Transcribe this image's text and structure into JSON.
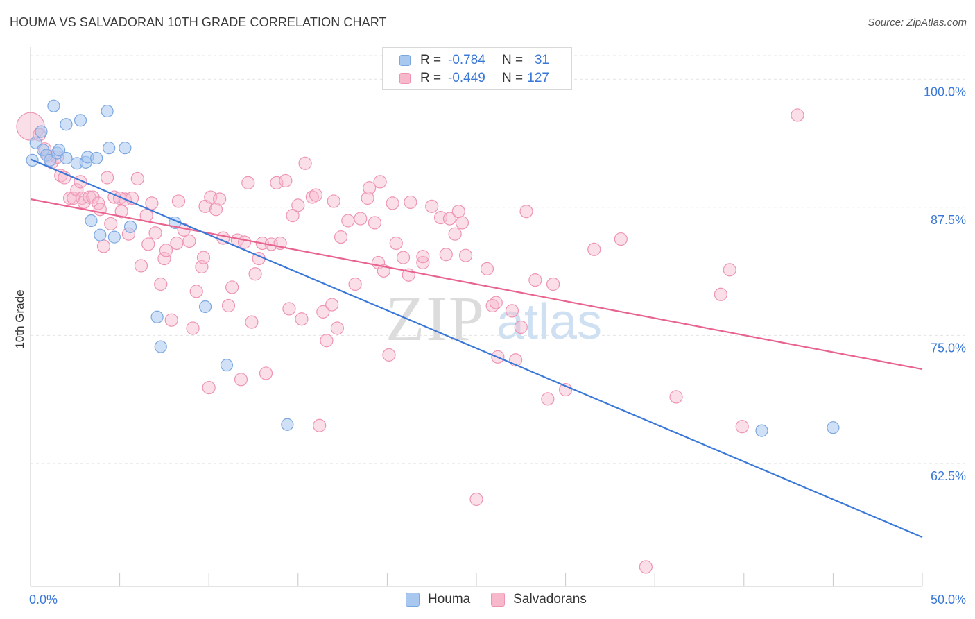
{
  "title": "HOUMA VS SALVADORAN 10TH GRADE CORRELATION CHART",
  "source": "Source: ZipAtlas.com",
  "watermark": {
    "zip": "ZIP",
    "atlas": "atlas"
  },
  "colors": {
    "houma_fill": "#a9c8f0",
    "houma_stroke": "#7ba7e0",
    "houma_line": "#3a78d8",
    "salv_fill": "#f7b8cc",
    "salv_stroke": "#ee94b2",
    "salv_line": "#e8648f",
    "tick_text": "#3a78d8",
    "grid": "#e4e4e4"
  },
  "legend_top": {
    "rows": [
      {
        "series": "Houma",
        "r_label": "R =",
        "r_value": "-0.784",
        "n_label": "N =",
        "n_value": "31"
      },
      {
        "series": "Salvadorans",
        "r_label": "R =",
        "r_value": "-0.449",
        "n_label": "N =",
        "n_value": "127"
      }
    ]
  },
  "chart_data": {
    "type": "scatter",
    "title": "HOUMA VS SALVADORAN 10TH GRADE CORRELATION CHART",
    "ylabel": "10th Grade",
    "xlabel": "",
    "xlim": [
      0,
      50
    ],
    "ylim": [
      50.5,
      103
    ],
    "y_ticks": [
      {
        "value": 100,
        "label": "100.0%"
      },
      {
        "value": 87.5,
        "label": "87.5%"
      },
      {
        "value": 75,
        "label": "75.0%"
      },
      {
        "value": 62.5,
        "label": "62.5%"
      }
    ],
    "x_tick_labels": [
      {
        "value": 0,
        "label": "0.0%"
      },
      {
        "value": 50,
        "label": "50.0%"
      }
    ],
    "x_minor_ticks": [
      0,
      5,
      10,
      15,
      20,
      25,
      30,
      35,
      40,
      45,
      50
    ],
    "grid": true,
    "legend_position": "bottom",
    "series": [
      {
        "name": "Houma",
        "r": -0.784,
        "n": 31,
        "trend": {
          "x": [
            0,
            50
          ],
          "y": [
            92.2,
            55.3
          ]
        },
        "points": [
          [
            0.1,
            92.1
          ],
          [
            0.3,
            93.8
          ],
          [
            0.6,
            94.9
          ],
          [
            0.7,
            93.1
          ],
          [
            0.9,
            92.6
          ],
          [
            1.1,
            92.1
          ],
          [
            1.3,
            97.4
          ],
          [
            1.5,
            92.8
          ],
          [
            1.6,
            93.1
          ],
          [
            2.0,
            92.3
          ],
          [
            2.0,
            95.6
          ],
          [
            2.6,
            91.8
          ],
          [
            2.8,
            96.0
          ],
          [
            3.1,
            91.9
          ],
          [
            3.2,
            92.4
          ],
          [
            3.4,
            86.2
          ],
          [
            3.7,
            92.3
          ],
          [
            3.9,
            84.8
          ],
          [
            4.3,
            96.9
          ],
          [
            4.4,
            93.3
          ],
          [
            4.7,
            84.6
          ],
          [
            5.3,
            93.3
          ],
          [
            5.6,
            85.6
          ],
          [
            7.1,
            76.8
          ],
          [
            7.3,
            73.9
          ],
          [
            8.1,
            86.0
          ],
          [
            9.8,
            77.8
          ],
          [
            11.0,
            72.1
          ],
          [
            14.4,
            66.3
          ],
          [
            41.0,
            65.7
          ],
          [
            45.0,
            66.0
          ]
        ]
      },
      {
        "name": "Salvadorans",
        "r": -0.449,
        "n": 127,
        "trend": {
          "x": [
            0,
            50
          ],
          "y": [
            88.3,
            71.7
          ]
        },
        "points": [
          [
            0.0,
            95.4
          ],
          [
            0.5,
            94.6
          ],
          [
            0.8,
            93.2
          ],
          [
            1.0,
            92.5
          ],
          [
            1.2,
            91.9
          ],
          [
            1.5,
            92.4
          ],
          [
            1.7,
            90.6
          ],
          [
            1.9,
            90.4
          ],
          [
            2.2,
            88.4
          ],
          [
            2.4,
            88.4
          ],
          [
            2.6,
            89.2
          ],
          [
            2.8,
            90.0
          ],
          [
            2.9,
            88.4
          ],
          [
            3.0,
            88.0
          ],
          [
            3.3,
            88.5
          ],
          [
            3.5,
            88.5
          ],
          [
            3.8,
            87.9
          ],
          [
            3.9,
            87.3
          ],
          [
            4.1,
            83.7
          ],
          [
            4.3,
            90.4
          ],
          [
            4.5,
            85.9
          ],
          [
            4.7,
            88.5
          ],
          [
            5.0,
            88.4
          ],
          [
            5.1,
            87.1
          ],
          [
            5.3,
            88.3
          ],
          [
            5.5,
            84.9
          ],
          [
            5.7,
            88.4
          ],
          [
            6.0,
            90.3
          ],
          [
            6.2,
            81.8
          ],
          [
            6.5,
            86.7
          ],
          [
            6.6,
            83.9
          ],
          [
            6.8,
            87.9
          ],
          [
            7.0,
            85.0
          ],
          [
            7.3,
            80.0
          ],
          [
            7.5,
            82.5
          ],
          [
            7.6,
            83.3
          ],
          [
            7.9,
            76.5
          ],
          [
            8.2,
            84.0
          ],
          [
            8.3,
            88.1
          ],
          [
            8.6,
            85.3
          ],
          [
            8.9,
            84.2
          ],
          [
            9.1,
            75.7
          ],
          [
            9.3,
            79.3
          ],
          [
            9.6,
            81.7
          ],
          [
            9.7,
            82.6
          ],
          [
            9.8,
            87.6
          ],
          [
            10.0,
            69.9
          ],
          [
            10.1,
            88.5
          ],
          [
            10.4,
            87.3
          ],
          [
            10.6,
            88.3
          ],
          [
            10.8,
            84.5
          ],
          [
            11.1,
            77.9
          ],
          [
            11.3,
            79.7
          ],
          [
            11.6,
            84.3
          ],
          [
            11.8,
            70.7
          ],
          [
            12.0,
            84.1
          ],
          [
            12.2,
            89.9
          ],
          [
            12.4,
            76.3
          ],
          [
            12.6,
            81.0
          ],
          [
            12.8,
            82.5
          ],
          [
            13.0,
            84.0
          ],
          [
            13.2,
            71.3
          ],
          [
            13.5,
            83.9
          ],
          [
            13.8,
            89.9
          ],
          [
            14.0,
            84.0
          ],
          [
            14.3,
            90.1
          ],
          [
            14.5,
            77.6
          ],
          [
            14.7,
            86.7
          ],
          [
            15.0,
            87.7
          ],
          [
            15.2,
            76.6
          ],
          [
            15.4,
            91.8
          ],
          [
            15.8,
            88.5
          ],
          [
            16.0,
            88.7
          ],
          [
            16.2,
            66.2
          ],
          [
            16.4,
            77.3
          ],
          [
            16.6,
            74.5
          ],
          [
            16.9,
            78.0
          ],
          [
            17.0,
            88.1
          ],
          [
            17.2,
            75.7
          ],
          [
            17.4,
            84.6
          ],
          [
            17.8,
            86.2
          ],
          [
            18.2,
            80.0
          ],
          [
            18.5,
            86.4
          ],
          [
            18.9,
            88.4
          ],
          [
            19.0,
            89.4
          ],
          [
            19.3,
            86.0
          ],
          [
            19.5,
            82.1
          ],
          [
            19.6,
            90.0
          ],
          [
            19.8,
            81.3
          ],
          [
            20.1,
            73.1
          ],
          [
            20.3,
            87.9
          ],
          [
            20.5,
            84.0
          ],
          [
            20.9,
            82.6
          ],
          [
            21.2,
            80.9
          ],
          [
            21.3,
            88.0
          ],
          [
            22.0,
            82.1
          ],
          [
            22.0,
            82.7
          ],
          [
            22.5,
            87.6
          ],
          [
            23.0,
            86.5
          ],
          [
            23.3,
            82.9
          ],
          [
            23.5,
            86.4
          ],
          [
            23.8,
            84.9
          ],
          [
            24.0,
            87.1
          ],
          [
            24.2,
            86.0
          ],
          [
            24.4,
            82.8
          ],
          [
            25.0,
            59.0
          ],
          [
            25.6,
            81.5
          ],
          [
            25.9,
            77.9
          ],
          [
            26.1,
            78.2
          ],
          [
            26.2,
            72.9
          ],
          [
            27.0,
            77.4
          ],
          [
            27.2,
            72.6
          ],
          [
            27.5,
            75.8
          ],
          [
            27.8,
            87.1
          ],
          [
            28.3,
            80.4
          ],
          [
            29.0,
            68.8
          ],
          [
            29.3,
            80.0
          ],
          [
            30.0,
            69.7
          ],
          [
            31.6,
            83.4
          ],
          [
            33.1,
            84.4
          ],
          [
            34.5,
            52.4
          ],
          [
            36.2,
            69.0
          ],
          [
            38.7,
            79.0
          ],
          [
            39.2,
            81.4
          ],
          [
            39.9,
            66.1
          ],
          [
            43.0,
            96.5
          ]
        ]
      }
    ]
  }
}
